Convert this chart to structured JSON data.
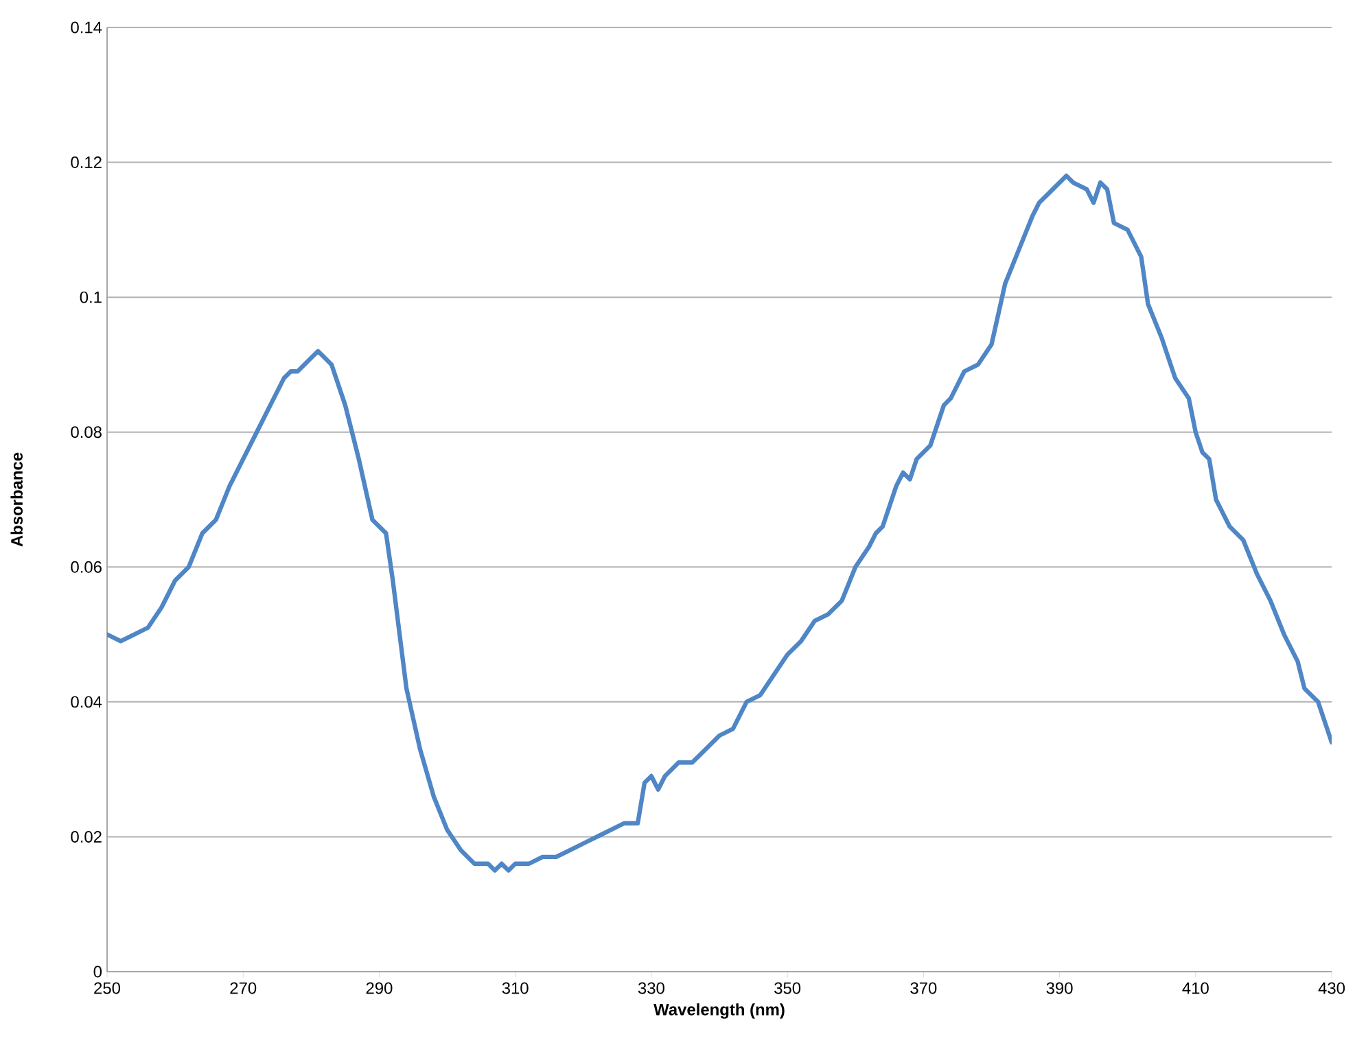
{
  "chart_data": {
    "type": "line",
    "xlabel": "Wavelength (nm)",
    "ylabel": "Absorbance",
    "xlim": [
      250,
      430
    ],
    "xticks": [
      250,
      270,
      290,
      310,
      330,
      350,
      370,
      390,
      410,
      430
    ],
    "ylim": [
      0,
      0.14
    ],
    "yticks": [
      0,
      0.02,
      0.04,
      0.06,
      0.08,
      0.1,
      0.12,
      0.14
    ],
    "grid": "y",
    "marker": "none",
    "line_style": "solid",
    "series": [
      {
        "color": "#4f86c6",
        "x": [
          250,
          252,
          254,
          256,
          258,
          260,
          262,
          264,
          266,
          268,
          270,
          272,
          274,
          276,
          277,
          278,
          280,
          281,
          282,
          283,
          285,
          287,
          289,
          291,
          292,
          293,
          294,
          296,
          298,
          300,
          302,
          304,
          306,
          307,
          308,
          309,
          310,
          312,
          314,
          316,
          318,
          320,
          322,
          324,
          326,
          328,
          329,
          330,
          331,
          332,
          334,
          336,
          338,
          340,
          342,
          344,
          346,
          348,
          350,
          352,
          354,
          356,
          358,
          360,
          362,
          363,
          364,
          366,
          367,
          368,
          369,
          371,
          373,
          374,
          376,
          378,
          380,
          382,
          384,
          386,
          387,
          389,
          391,
          392,
          394,
          395,
          396,
          397,
          398,
          400,
          402,
          403,
          405,
          407,
          409,
          410,
          411,
          412,
          413,
          415,
          417,
          419,
          421,
          423,
          425,
          426,
          428,
          430
        ],
        "values": [
          0.05,
          0.049,
          0.05,
          0.051,
          0.054,
          0.058,
          0.06,
          0.065,
          0.067,
          0.072,
          0.076,
          0.08,
          0.084,
          0.088,
          0.089,
          0.089,
          0.091,
          0.092,
          0.091,
          0.09,
          0.084,
          0.076,
          0.067,
          0.065,
          0.058,
          0.05,
          0.042,
          0.033,
          0.026,
          0.021,
          0.018,
          0.016,
          0.016,
          0.015,
          0.016,
          0.015,
          0.016,
          0.016,
          0.017,
          0.017,
          0.018,
          0.019,
          0.02,
          0.021,
          0.022,
          0.022,
          0.028,
          0.029,
          0.027,
          0.029,
          0.031,
          0.031,
          0.033,
          0.035,
          0.036,
          0.04,
          0.041,
          0.044,
          0.047,
          0.049,
          0.052,
          0.053,
          0.055,
          0.06,
          0.063,
          0.065,
          0.066,
          0.072,
          0.074,
          0.073,
          0.076,
          0.078,
          0.084,
          0.085,
          0.089,
          0.09,
          0.093,
          0.102,
          0.107,
          0.112,
          0.114,
          0.116,
          0.118,
          0.117,
          0.116,
          0.114,
          0.117,
          0.116,
          0.111,
          0.11,
          0.106,
          0.099,
          0.094,
          0.088,
          0.085,
          0.08,
          0.077,
          0.076,
          0.07,
          0.066,
          0.064,
          0.059,
          0.055,
          0.05,
          0.046,
          0.042,
          0.04,
          0.034
        ]
      }
    ]
  }
}
